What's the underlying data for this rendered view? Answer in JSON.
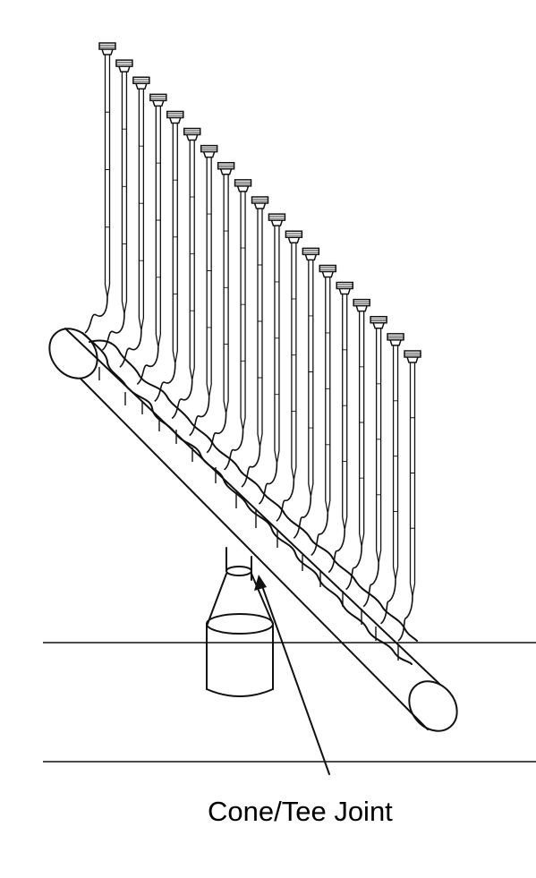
{
  "annotation": {
    "label": "Cone/Tee Joint"
  }
}
